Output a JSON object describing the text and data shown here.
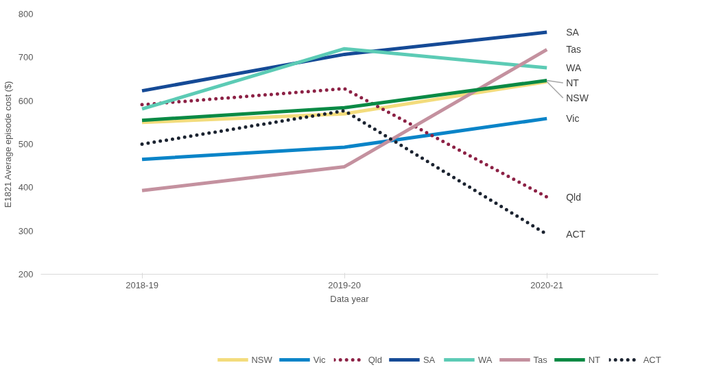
{
  "chart_data": {
    "type": "line",
    "xlabel": "Data year",
    "ylabel": "E1821 Average episode cost ($)",
    "categories": [
      "2018-19",
      "2019-20",
      "2020-21"
    ],
    "ylim": [
      200,
      800
    ],
    "yticks": [
      200,
      300,
      400,
      500,
      600,
      700,
      800
    ],
    "grid": false,
    "legend": "bottom",
    "marker": "none",
    "series": [
      {
        "name": "NSW",
        "color": "#f3dc7c",
        "values": [
          550,
          570,
          644
        ],
        "line_style": "solid"
      },
      {
        "name": "Vic",
        "color": "#0a84c8",
        "values": [
          465,
          493,
          559
        ],
        "line_style": "solid"
      },
      {
        "name": "Qld",
        "color": "#8c2145",
        "values": [
          591,
          628,
          378
        ],
        "line_style": "dotted"
      },
      {
        "name": "SA",
        "color": "#154a96",
        "values": [
          623,
          707,
          758
        ],
        "line_style": "solid"
      },
      {
        "name": "WA",
        "color": "#5ccbb5",
        "values": [
          581,
          720,
          676
        ],
        "line_style": "solid"
      },
      {
        "name": "Tas",
        "color": "#c4919f",
        "values": [
          393,
          448,
          718
        ],
        "line_style": "solid"
      },
      {
        "name": "NT",
        "color": "#0a8a45",
        "values": [
          555,
          584,
          647
        ],
        "line_style": "solid"
      },
      {
        "name": "ACT",
        "color": "#1b2330",
        "values": [
          500,
          577,
          292
        ],
        "line_style": "dotted"
      }
    ],
    "annotations": [
      {
        "text": "SA",
        "x": "2020-21",
        "y": 758
      },
      {
        "text": "Tas",
        "x": "2020-21",
        "y": 718
      },
      {
        "text": "WA",
        "x": "2020-21",
        "y": 676
      },
      {
        "text": "NT",
        "x": "2020-21",
        "y": 647
      },
      {
        "text": "NSW",
        "x": "2020-21",
        "y": 644
      },
      {
        "text": "Vic",
        "x": "2020-21",
        "y": 559
      },
      {
        "text": "Qld",
        "x": "2020-21",
        "y": 378
      },
      {
        "text": "ACT",
        "x": "2020-21",
        "y": 292
      }
    ]
  }
}
